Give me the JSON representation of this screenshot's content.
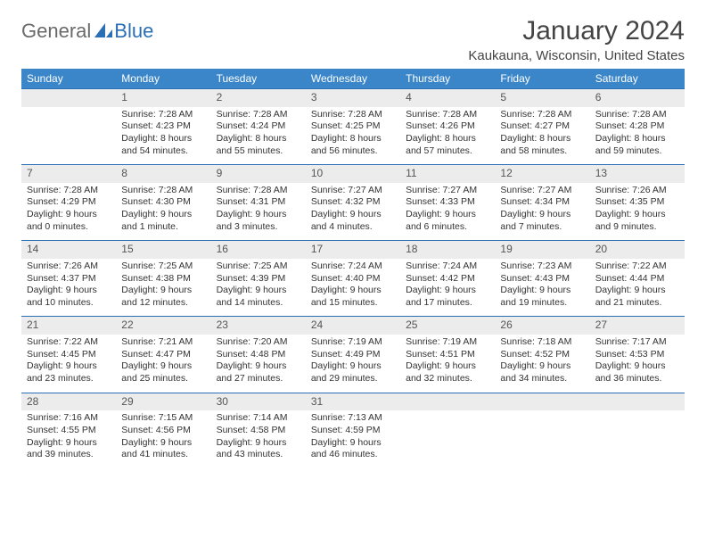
{
  "brand": {
    "part1": "General",
    "part2": "Blue",
    "logo_color": "#2a6fb5",
    "gray": "#6a6a6a"
  },
  "title": {
    "month_year": "January 2024",
    "location": "Kaukauna, Wisconsin, United States"
  },
  "colors": {
    "header_bg": "#3a86c8",
    "header_fg": "#ffffff",
    "daynum_bg": "#ececec",
    "rule": "#2a6fb5",
    "text": "#333333"
  },
  "day_headers": [
    "Sunday",
    "Monday",
    "Tuesday",
    "Wednesday",
    "Thursday",
    "Friday",
    "Saturday"
  ],
  "weeks": [
    [
      null,
      {
        "n": "1",
        "l1": "Sunrise: 7:28 AM",
        "l2": "Sunset: 4:23 PM",
        "l3": "Daylight: 8 hours",
        "l4": "and 54 minutes."
      },
      {
        "n": "2",
        "l1": "Sunrise: 7:28 AM",
        "l2": "Sunset: 4:24 PM",
        "l3": "Daylight: 8 hours",
        "l4": "and 55 minutes."
      },
      {
        "n": "3",
        "l1": "Sunrise: 7:28 AM",
        "l2": "Sunset: 4:25 PM",
        "l3": "Daylight: 8 hours",
        "l4": "and 56 minutes."
      },
      {
        "n": "4",
        "l1": "Sunrise: 7:28 AM",
        "l2": "Sunset: 4:26 PM",
        "l3": "Daylight: 8 hours",
        "l4": "and 57 minutes."
      },
      {
        "n": "5",
        "l1": "Sunrise: 7:28 AM",
        "l2": "Sunset: 4:27 PM",
        "l3": "Daylight: 8 hours",
        "l4": "and 58 minutes."
      },
      {
        "n": "6",
        "l1": "Sunrise: 7:28 AM",
        "l2": "Sunset: 4:28 PM",
        "l3": "Daylight: 8 hours",
        "l4": "and 59 minutes."
      }
    ],
    [
      {
        "n": "7",
        "l1": "Sunrise: 7:28 AM",
        "l2": "Sunset: 4:29 PM",
        "l3": "Daylight: 9 hours",
        "l4": "and 0 minutes."
      },
      {
        "n": "8",
        "l1": "Sunrise: 7:28 AM",
        "l2": "Sunset: 4:30 PM",
        "l3": "Daylight: 9 hours",
        "l4": "and 1 minute."
      },
      {
        "n": "9",
        "l1": "Sunrise: 7:28 AM",
        "l2": "Sunset: 4:31 PM",
        "l3": "Daylight: 9 hours",
        "l4": "and 3 minutes."
      },
      {
        "n": "10",
        "l1": "Sunrise: 7:27 AM",
        "l2": "Sunset: 4:32 PM",
        "l3": "Daylight: 9 hours",
        "l4": "and 4 minutes."
      },
      {
        "n": "11",
        "l1": "Sunrise: 7:27 AM",
        "l2": "Sunset: 4:33 PM",
        "l3": "Daylight: 9 hours",
        "l4": "and 6 minutes."
      },
      {
        "n": "12",
        "l1": "Sunrise: 7:27 AM",
        "l2": "Sunset: 4:34 PM",
        "l3": "Daylight: 9 hours",
        "l4": "and 7 minutes."
      },
      {
        "n": "13",
        "l1": "Sunrise: 7:26 AM",
        "l2": "Sunset: 4:35 PM",
        "l3": "Daylight: 9 hours",
        "l4": "and 9 minutes."
      }
    ],
    [
      {
        "n": "14",
        "l1": "Sunrise: 7:26 AM",
        "l2": "Sunset: 4:37 PM",
        "l3": "Daylight: 9 hours",
        "l4": "and 10 minutes."
      },
      {
        "n": "15",
        "l1": "Sunrise: 7:25 AM",
        "l2": "Sunset: 4:38 PM",
        "l3": "Daylight: 9 hours",
        "l4": "and 12 minutes."
      },
      {
        "n": "16",
        "l1": "Sunrise: 7:25 AM",
        "l2": "Sunset: 4:39 PM",
        "l3": "Daylight: 9 hours",
        "l4": "and 14 minutes."
      },
      {
        "n": "17",
        "l1": "Sunrise: 7:24 AM",
        "l2": "Sunset: 4:40 PM",
        "l3": "Daylight: 9 hours",
        "l4": "and 15 minutes."
      },
      {
        "n": "18",
        "l1": "Sunrise: 7:24 AM",
        "l2": "Sunset: 4:42 PM",
        "l3": "Daylight: 9 hours",
        "l4": "and 17 minutes."
      },
      {
        "n": "19",
        "l1": "Sunrise: 7:23 AM",
        "l2": "Sunset: 4:43 PM",
        "l3": "Daylight: 9 hours",
        "l4": "and 19 minutes."
      },
      {
        "n": "20",
        "l1": "Sunrise: 7:22 AM",
        "l2": "Sunset: 4:44 PM",
        "l3": "Daylight: 9 hours",
        "l4": "and 21 minutes."
      }
    ],
    [
      {
        "n": "21",
        "l1": "Sunrise: 7:22 AM",
        "l2": "Sunset: 4:45 PM",
        "l3": "Daylight: 9 hours",
        "l4": "and 23 minutes."
      },
      {
        "n": "22",
        "l1": "Sunrise: 7:21 AM",
        "l2": "Sunset: 4:47 PM",
        "l3": "Daylight: 9 hours",
        "l4": "and 25 minutes."
      },
      {
        "n": "23",
        "l1": "Sunrise: 7:20 AM",
        "l2": "Sunset: 4:48 PM",
        "l3": "Daylight: 9 hours",
        "l4": "and 27 minutes."
      },
      {
        "n": "24",
        "l1": "Sunrise: 7:19 AM",
        "l2": "Sunset: 4:49 PM",
        "l3": "Daylight: 9 hours",
        "l4": "and 29 minutes."
      },
      {
        "n": "25",
        "l1": "Sunrise: 7:19 AM",
        "l2": "Sunset: 4:51 PM",
        "l3": "Daylight: 9 hours",
        "l4": "and 32 minutes."
      },
      {
        "n": "26",
        "l1": "Sunrise: 7:18 AM",
        "l2": "Sunset: 4:52 PM",
        "l3": "Daylight: 9 hours",
        "l4": "and 34 minutes."
      },
      {
        "n": "27",
        "l1": "Sunrise: 7:17 AM",
        "l2": "Sunset: 4:53 PM",
        "l3": "Daylight: 9 hours",
        "l4": "and 36 minutes."
      }
    ],
    [
      {
        "n": "28",
        "l1": "Sunrise: 7:16 AM",
        "l2": "Sunset: 4:55 PM",
        "l3": "Daylight: 9 hours",
        "l4": "and 39 minutes."
      },
      {
        "n": "29",
        "l1": "Sunrise: 7:15 AM",
        "l2": "Sunset: 4:56 PM",
        "l3": "Daylight: 9 hours",
        "l4": "and 41 minutes."
      },
      {
        "n": "30",
        "l1": "Sunrise: 7:14 AM",
        "l2": "Sunset: 4:58 PM",
        "l3": "Daylight: 9 hours",
        "l4": "and 43 minutes."
      },
      {
        "n": "31",
        "l1": "Sunrise: 7:13 AM",
        "l2": "Sunset: 4:59 PM",
        "l3": "Daylight: 9 hours",
        "l4": "and 46 minutes."
      },
      null,
      null,
      null
    ]
  ]
}
